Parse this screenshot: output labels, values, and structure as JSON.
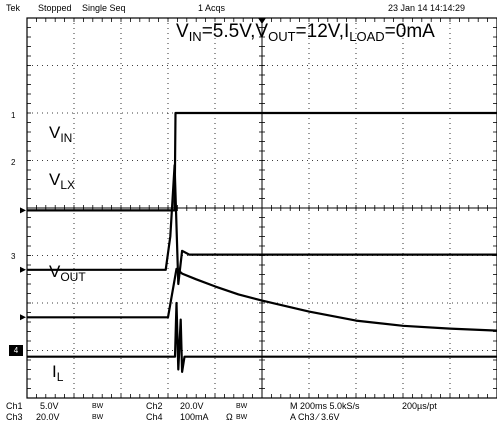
{
  "header": {
    "brand": "Tek",
    "acq_state": "Stopped",
    "mode": "Single Seq",
    "acqs": "1 Acqs",
    "datetime": "23 Jan 14 14:14:29"
  },
  "conditions": {
    "vin_main": "V",
    "vin_sub": "IN",
    "vin_val": "=5.5V,",
    "vout_main": "V",
    "vout_sub": "OUT",
    "vout_val": "=12V,",
    "iload_main": "I",
    "iload_sub": "LOAD",
    "iload_val": "=0mA"
  },
  "trace_labels": {
    "vin": {
      "main": "V",
      "sub": "IN"
    },
    "vlx": {
      "main": "V",
      "sub": "LX"
    },
    "vout": {
      "main": "V",
      "sub": "OUT"
    },
    "il": {
      "main": "I",
      "sub": "L"
    }
  },
  "channel_markers": [
    "1",
    "2",
    "3",
    "4"
  ],
  "footer": {
    "ch1_label": "Ch1",
    "ch1_scale": "5.0V",
    "ch1_bw": "BW",
    "ch3_label": "Ch3",
    "ch3_scale": "20.0V",
    "ch3_bw": "BW",
    "ch2_label": "Ch2",
    "ch2_scale": "20.0V",
    "ch2_bw": "BW",
    "ch4_label": "Ch4",
    "ch4_scale": "100mA",
    "ch4_ohm": "Ω",
    "ch4_bw": "BW",
    "timebase": "M 200ms 5.0kS/s",
    "sample": "200µs/pt",
    "trigger": "A  Ch3  ⁄  3.6V"
  },
  "chart_data": {
    "type": "line",
    "divisions": {
      "x": 10,
      "y": 8
    },
    "grid": true,
    "x_unit": "div",
    "series": [
      {
        "channel": "Ch1",
        "name": "VIN",
        "x": [
          0,
          3.0,
          3.14,
          3.16,
          3.2,
          10
        ],
        "y": [
          3.95,
          3.95,
          3.95,
          6.0,
          6.0,
          6.0
        ]
      },
      {
        "channel": "Ch2",
        "name": "VLX",
        "x": [
          0,
          2.95,
          3.05,
          3.14,
          3.22,
          3.3,
          3.45,
          10
        ],
        "y": [
          2.7,
          2.7,
          3.4,
          4.9,
          2.4,
          3.1,
          3.02,
          3.02
        ]
      },
      {
        "channel": "Ch3",
        "name": "VOUT",
        "x": [
          0,
          3.0,
          3.18,
          3.3,
          3.6,
          4.0,
          4.5,
          5.0,
          6.0,
          7.0,
          8.0,
          9.0,
          10
        ],
        "y": [
          1.7,
          1.7,
          2.72,
          2.62,
          2.5,
          2.35,
          2.18,
          2.05,
          1.82,
          1.63,
          1.52,
          1.46,
          1.42
        ]
      },
      {
        "channel": "Ch4",
        "name": "IL",
        "x": [
          0,
          3.15,
          3.18,
          3.22,
          3.27,
          3.3,
          3.35,
          10
        ],
        "y": [
          0.87,
          0.87,
          2.0,
          0.6,
          1.65,
          0.55,
          0.87,
          0.87
        ]
      }
    ]
  }
}
